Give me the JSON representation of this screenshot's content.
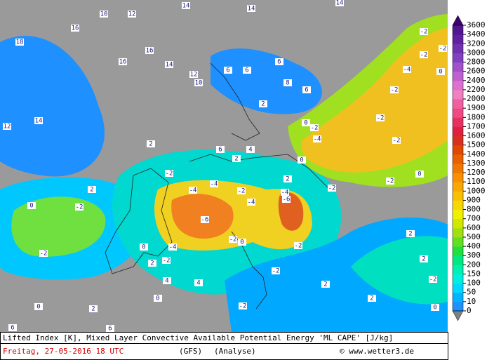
{
  "footer": {
    "title": "Lifted Index [K], Mixed Layer Convective Available Potential Energy 'ML CAPE' [J/kg]",
    "date": "Freitag, 27-05-2016  18 UTC",
    "model": "(GFS)",
    "run": "(Analyse)",
    "source": "© www.wetter3.de"
  },
  "colorbar": {
    "levels": [
      0,
      10,
      50,
      100,
      150,
      200,
      300,
      400,
      500,
      600,
      700,
      800,
      900,
      1000,
      1100,
      1200,
      1300,
      1400,
      1500,
      1600,
      1700,
      1800,
      1900,
      2000,
      2200,
      2400,
      2600,
      2800,
      3000,
      3200,
      3400,
      3600
    ],
    "colors": [
      "#1e90ff",
      "#00b4ff",
      "#00d8ff",
      "#00f0e0",
      "#00f0b0",
      "#00e880",
      "#20e040",
      "#60e020",
      "#a0e010",
      "#d0e800",
      "#f0f000",
      "#f8d800",
      "#f8c000",
      "#f8a800",
      "#f89000",
      "#f07800",
      "#e86000",
      "#e04800",
      "#d83020",
      "#e02040",
      "#e83060",
      "#f04880",
      "#f060a0",
      "#f080c0",
      "#e070d0",
      "#c060d0",
      "#a050c8",
      "#8040c0",
      "#7030b0",
      "#6020a0",
      "#501890"
    ]
  },
  "map_labels": [
    "14",
    "14",
    "14",
    "10",
    "12",
    "16",
    "18",
    "12",
    "14",
    "16",
    "16",
    "14",
    "12",
    "10",
    "6",
    "6",
    "6",
    "8",
    "6",
    "2",
    "4",
    "6",
    "2",
    "0",
    "-2",
    "-4",
    "-2",
    "-4",
    "-2",
    "-4",
    "-6",
    "-4",
    "-4",
    "-6",
    "-2",
    "-2",
    "-2",
    "0",
    "-2",
    "2",
    "-4",
    "-2",
    "-2",
    "-2",
    "2",
    "0",
    "-2",
    "-2",
    "-2",
    "-4",
    "-2",
    "-2",
    "-2",
    "0",
    "-2",
    "0",
    "2",
    "0",
    "-2",
    "0",
    "2",
    "4",
    "4",
    "6",
    "6",
    "0",
    "2",
    "0",
    "-2",
    "2",
    "2",
    "2",
    "2",
    "0"
  ]
}
